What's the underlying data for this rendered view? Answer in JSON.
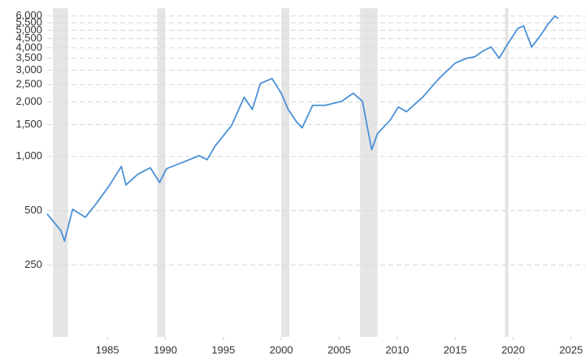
{
  "chart_data": {
    "type": "line",
    "log_y": true,
    "grid": true,
    "x": [
      1979.8,
      1981.0,
      1981.3,
      1982.0,
      1983.1,
      1984.1,
      1985.2,
      1986.2,
      1986.6,
      1987.6,
      1988.7,
      1989.5,
      1990.1,
      1991.9,
      1992.9,
      1993.6,
      1994.3,
      1995.7,
      1996.8,
      1997.5,
      1998.2,
      1999.2,
      2000.0,
      2000.6,
      2001.3,
      2001.8,
      2002.7,
      2003.8,
      2005.2,
      2006.2,
      2007.0,
      2007.4,
      2007.8,
      2008.3,
      2009.4,
      2010.1,
      2010.8,
      2012.2,
      2013.6,
      2015.0,
      2016.0,
      2016.7,
      2017.4,
      2018.1,
      2018.8,
      2019.5,
      2020.4,
      2020.9,
      2021.6,
      2022.3,
      2023.0,
      2023.6,
      2023.9
    ],
    "series": [
      {
        "color": "#4a90d6",
        "values": [
          480,
          387,
          340,
          510,
          460,
          555,
          695,
          880,
          695,
          795,
          865,
          718,
          855,
          950,
          1010,
          960,
          1145,
          1480,
          2130,
          1820,
          2540,
          2700,
          2240,
          1820,
          1560,
          1440,
          1920,
          1920,
          2020,
          2240,
          2020,
          1480,
          1090,
          1340,
          1590,
          1880,
          1770,
          2130,
          2700,
          3290,
          3500,
          3570,
          3840,
          4040,
          3500,
          4170,
          5120,
          5290,
          4040,
          4620,
          5400,
          6000,
          5820
        ]
      }
    ],
    "recessions": [
      [
        1980.3,
        1981.6
      ],
      [
        1989.3,
        1990.0
      ],
      [
        2000.0,
        2000.7
      ],
      [
        2006.8,
        2008.3
      ],
      [
        2019.3,
        2019.6
      ]
    ],
    "recession_color": "#e5e5e5",
    "xlim": [
      1979.8,
      2026.2
    ],
    "xticks": [
      1985,
      1990,
      1995,
      2000,
      2005,
      2010,
      2015,
      2020,
      2025
    ],
    "ylim": [
      100,
      6500
    ],
    "yticks": [
      250,
      500,
      {
        "value": 1000,
        "label": "1,000"
      },
      {
        "value": 1500,
        "label": "1,500"
      },
      {
        "value": 2000,
        "label": "2,000"
      },
      {
        "value": 2500,
        "label": "2,500"
      },
      {
        "value": 3000,
        "label": "3,000"
      },
      {
        "value": 3500,
        "label": "3,500"
      },
      {
        "value": 4000,
        "label": "4,000"
      },
      {
        "value": 4500,
        "label": "4,500"
      },
      {
        "value": 5000,
        "label": "5,000"
      },
      {
        "value": 5500,
        "label": "5,500"
      },
      {
        "value": 6000,
        "label": "6,000"
      }
    ]
  }
}
